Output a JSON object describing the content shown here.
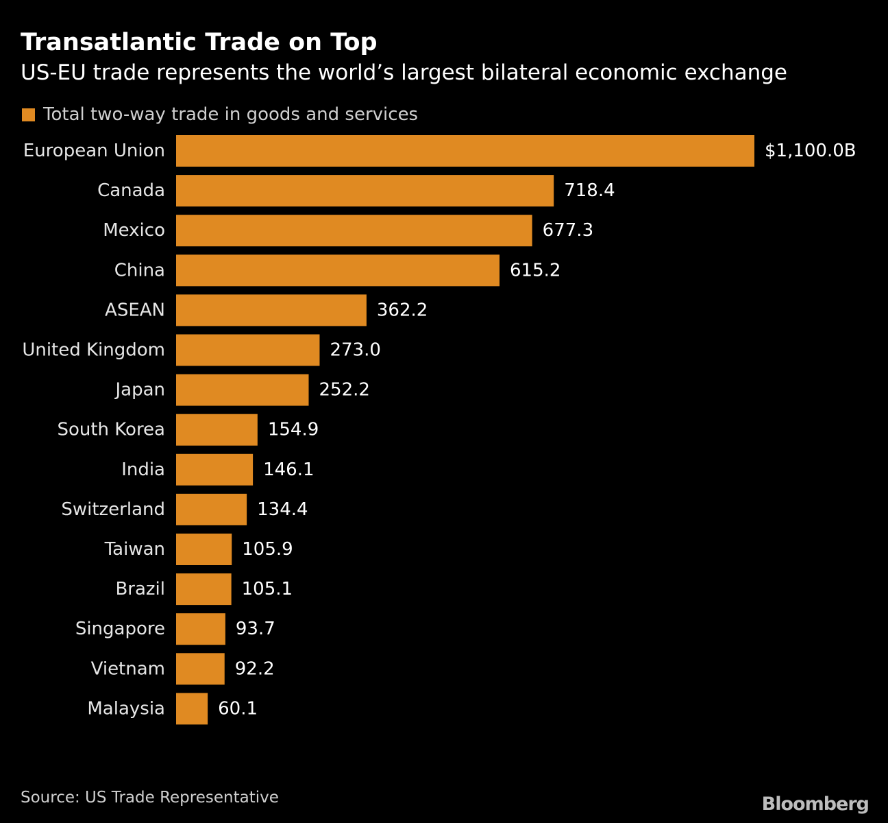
{
  "title": "Transatlantic Trade on Top",
  "subtitle": "US-EU trade represents the world’s largest bilateral economic exchange",
  "legend": {
    "label": "Total two-way trade in goods and services",
    "color": "#e08a22"
  },
  "source": "Source: US Trade Representative",
  "brand": "Bloomberg",
  "colors": {
    "background": "#000000",
    "bar": "#e08a22",
    "text": "#ffffff",
    "muted": "#d0d0d0"
  },
  "chart_data": {
    "type": "bar",
    "orientation": "horizontal",
    "title": "Transatlantic Trade on Top",
    "subtitle": "US-EU trade represents the world’s largest bilateral economic exchange",
    "xlabel": "",
    "ylabel": "",
    "xlim": [
      0,
      1100
    ],
    "grid": false,
    "legend_position": "top-left",
    "categories": [
      "European Union",
      "Canada",
      "Mexico",
      "China",
      "ASEAN",
      "United Kingdom",
      "Japan",
      "South Korea",
      "India",
      "Switzerland",
      "Taiwan",
      "Brazil",
      "Singapore",
      "Vietnam",
      "Malaysia"
    ],
    "series": [
      {
        "name": "Total two-way trade in goods and services",
        "values": [
          1100.0,
          718.4,
          677.3,
          615.2,
          362.2,
          273.0,
          252.2,
          154.9,
          146.1,
          134.4,
          105.9,
          105.1,
          93.7,
          92.2,
          60.1
        ]
      }
    ],
    "value_labels": [
      "$1,100.0B",
      "718.4",
      "677.3",
      "615.2",
      "362.2",
      "273.0",
      "252.2",
      "154.9",
      "146.1",
      "134.4",
      "105.9",
      "105.1",
      "93.7",
      "92.2",
      "60.1"
    ]
  }
}
